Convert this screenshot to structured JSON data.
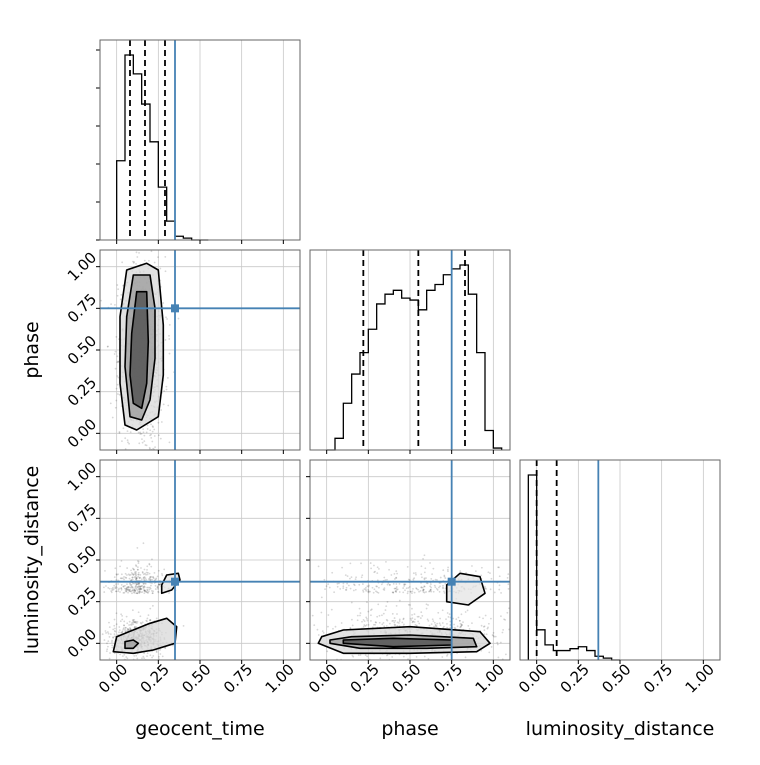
{
  "chart_data": {
    "type": "corner",
    "parameters": [
      "geocent_time",
      "phase",
      "luminosity_distance"
    ],
    "axis_range": [
      -0.1,
      1.1
    ],
    "ticks": [
      0.0,
      0.25,
      0.5,
      0.75,
      1.0
    ],
    "tick_labels": [
      "0.00",
      "0.25",
      "0.50",
      "0.75",
      "1.00"
    ],
    "grid": true,
    "colors": {
      "truth": "#4682b4",
      "hist": "#000000",
      "density": "#555555"
    },
    "xlabels": [
      "geocent_time",
      "phase",
      "luminosity_distance"
    ],
    "ylabels": [
      "",
      "phase",
      "luminosity_distance"
    ],
    "truths": [
      0.35,
      0.75,
      0.37
    ],
    "quantiles": [
      [
        0.08,
        0.17,
        0.29
      ],
      [
        0.22,
        0.55,
        0.83
      ],
      [
        0.0,
        0.12
      ]
    ],
    "histograms": [
      {
        "param": "geocent_time",
        "bin_edges": [
          0.0,
          0.05,
          0.1,
          0.15,
          0.2,
          0.25,
          0.3,
          0.35,
          0.4,
          0.45,
          0.5,
          0.55
        ],
        "counts": [
          0.42,
          0.98,
          0.88,
          0.72,
          0.52,
          0.28,
          0.1,
          0.02,
          0.01,
          0.0,
          0.0
        ]
      },
      {
        "param": "phase",
        "bin_edges": [
          0.0,
          0.05,
          0.1,
          0.15,
          0.2,
          0.25,
          0.3,
          0.35,
          0.4,
          0.45,
          0.5,
          0.55,
          0.6,
          0.65,
          0.7,
          0.75,
          0.8,
          0.85,
          0.9,
          0.95,
          1.0,
          1.05
        ],
        "counts": [
          0.0,
          0.06,
          0.24,
          0.39,
          0.5,
          0.62,
          0.75,
          0.8,
          0.82,
          0.78,
          0.77,
          0.72,
          0.82,
          0.85,
          0.9,
          0.93,
          0.95,
          0.8,
          0.5,
          0.1,
          0.01
        ]
      },
      {
        "param": "luminosity_distance",
        "bin_edges": [
          -0.05,
          0.0,
          0.05,
          0.1,
          0.15,
          0.2,
          0.25,
          0.3,
          0.35,
          0.4,
          0.45,
          0.5
        ],
        "counts": [
          0.98,
          0.16,
          0.08,
          0.05,
          0.05,
          0.06,
          0.07,
          0.05,
          0.02,
          0.01,
          0.0
        ]
      }
    ],
    "density_panels": [
      {
        "x": "geocent_time",
        "y": "phase",
        "scatter_center": [
          0.15,
          0.45
        ],
        "scatter_spread": [
          0.07,
          0.3
        ],
        "contours": [
          {
            "level": "outer",
            "points": [
              [
                0.05,
                0.05
              ],
              [
                0.12,
                0.02
              ],
              [
                0.25,
                0.1
              ],
              [
                0.28,
                0.35
              ],
              [
                0.28,
                0.65
              ],
              [
                0.25,
                0.98
              ],
              [
                0.18,
                1.02
              ],
              [
                0.06,
                0.98
              ],
              [
                0.02,
                0.7
              ],
              [
                0.02,
                0.3
              ]
            ]
          },
          {
            "level": "middle",
            "points": [
              [
                0.08,
                0.1
              ],
              [
                0.15,
                0.08
              ],
              [
                0.2,
                0.2
              ],
              [
                0.23,
                0.45
              ],
              [
                0.23,
                0.75
              ],
              [
                0.2,
                0.95
              ],
              [
                0.1,
                0.95
              ],
              [
                0.06,
                0.7
              ],
              [
                0.05,
                0.4
              ]
            ]
          },
          {
            "level": "inner",
            "points": [
              [
                0.1,
                0.18
              ],
              [
                0.15,
                0.15
              ],
              [
                0.18,
                0.3
              ],
              [
                0.19,
                0.55
              ],
              [
                0.18,
                0.85
              ],
              [
                0.12,
                0.85
              ],
              [
                0.09,
                0.6
              ],
              [
                0.08,
                0.35
              ]
            ]
          }
        ]
      },
      {
        "x": "geocent_time",
        "y": "luminosity_distance",
        "scatter_center": [
          0.12,
          0.03
        ],
        "scatter_spread": [
          0.08,
          0.06
        ],
        "contours": [
          {
            "level": "outer",
            "points": [
              [
                -0.02,
                -0.05
              ],
              [
                0.1,
                -0.06
              ],
              [
                0.22,
                -0.04
              ],
              [
                0.35,
                0.0
              ],
              [
                0.36,
                0.1
              ],
              [
                0.3,
                0.15
              ],
              [
                0.2,
                0.12
              ],
              [
                0.1,
                0.08
              ],
              [
                0.0,
                0.04
              ]
            ]
          },
          {
            "level": "middle",
            "points": [
              [
                0.05,
                -0.03
              ],
              [
                0.1,
                -0.03
              ],
              [
                0.13,
                0.0
              ],
              [
                0.1,
                0.02
              ],
              [
                0.05,
                0.01
              ]
            ]
          },
          {
            "level": "secondary",
            "points": [
              [
                0.27,
                0.3
              ],
              [
                0.33,
                0.32
              ],
              [
                0.38,
                0.38
              ],
              [
                0.37,
                0.42
              ],
              [
                0.3,
                0.41
              ],
              [
                0.27,
                0.35
              ]
            ]
          }
        ]
      },
      {
        "x": "phase",
        "y": "luminosity_distance",
        "scatter_center": [
          0.55,
          0.05
        ],
        "scatter_spread": [
          0.28,
          0.08
        ],
        "contours": [
          {
            "level": "outer",
            "points": [
              [
                -0.05,
                0.0
              ],
              [
                0.1,
                -0.06
              ],
              [
                0.5,
                -0.06
              ],
              [
                0.9,
                -0.05
              ],
              [
                0.98,
                0.0
              ],
              [
                0.92,
                0.07
              ],
              [
                0.5,
                0.1
              ],
              [
                0.1,
                0.08
              ],
              [
                -0.03,
                0.04
              ]
            ]
          },
          {
            "level": "middle",
            "points": [
              [
                0.02,
                0.0
              ],
              [
                0.2,
                -0.03
              ],
              [
                0.6,
                -0.03
              ],
              [
                0.9,
                -0.02
              ],
              [
                0.88,
                0.03
              ],
              [
                0.5,
                0.05
              ],
              [
                0.15,
                0.04
              ],
              [
                0.02,
                0.02
              ]
            ]
          },
          {
            "level": "inner",
            "points": [
              [
                0.1,
                0.0
              ],
              [
                0.4,
                -0.02
              ],
              [
                0.75,
                -0.01
              ],
              [
                0.75,
                0.02
              ],
              [
                0.4,
                0.03
              ],
              [
                0.1,
                0.02
              ]
            ]
          },
          {
            "level": "secondary",
            "points": [
              [
                0.72,
                0.25
              ],
              [
                0.85,
                0.23
              ],
              [
                0.95,
                0.3
              ],
              [
                0.92,
                0.4
              ],
              [
                0.8,
                0.42
              ],
              [
                0.72,
                0.35
              ]
            ]
          }
        ]
      }
    ]
  }
}
